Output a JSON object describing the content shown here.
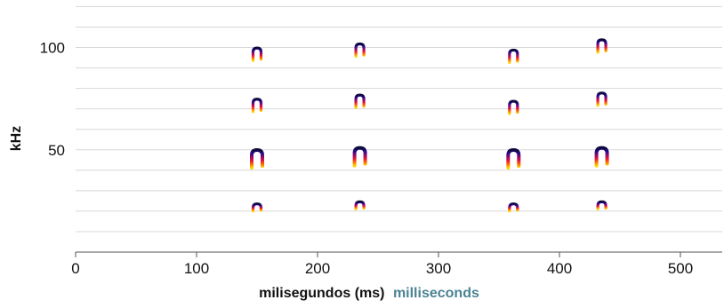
{
  "chart_data": {
    "type": "spectrogram",
    "xlabel_primary": "milisegundos (ms)",
    "xlabel_secondary": "milliseconds",
    "ylabel": "kHz",
    "xlim": [
      0,
      540
    ],
    "ylim": [
      0,
      120
    ],
    "x_ticks": [
      0,
      100,
      200,
      300,
      400,
      500
    ],
    "y_ticks": [
      50,
      100
    ],
    "y_gridlines": [
      10,
      20,
      30,
      40,
      50,
      60,
      70,
      80,
      90,
      100,
      110,
      120
    ],
    "grid": "horizontal",
    "colormap": [
      "#ffd400",
      "#ff6a00",
      "#e0143c",
      "#8c0a6e",
      "#2c0a8a",
      "#0a0a3c"
    ],
    "calls": [
      {
        "time": 150,
        "harmonic_kHz": [
          22,
          46,
          72,
          97
        ]
      },
      {
        "time": 235,
        "harmonic_kHz": [
          23,
          47,
          74,
          99
        ]
      },
      {
        "time": 362,
        "harmonic_kHz": [
          22,
          46,
          71,
          96
        ]
      },
      {
        "time": 435,
        "harmonic_kHz": [
          23,
          47,
          75,
          101
        ]
      }
    ]
  },
  "colors": {
    "grid": "#d8d8d8",
    "axis": "#555555",
    "text": "#111111",
    "accent": "#4a8394"
  }
}
